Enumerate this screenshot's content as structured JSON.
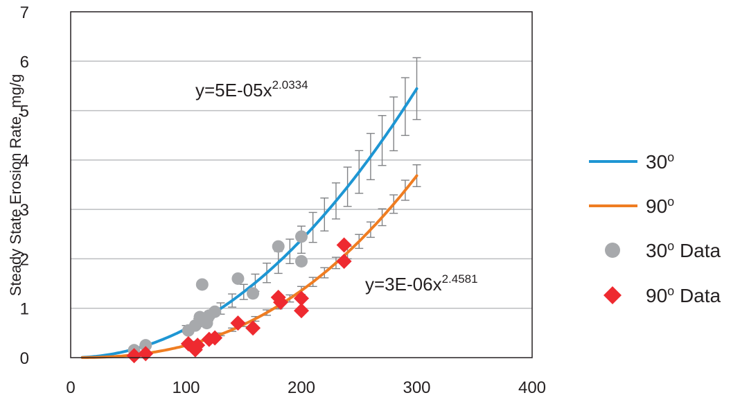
{
  "chart_data": {
    "type": "scatter",
    "title": "",
    "xlabel": "",
    "ylabel": "Steady State Erosion Rate, mg/g",
    "xlim": [
      0,
      400
    ],
    "ylim": [
      0,
      7
    ],
    "x_ticks": [
      "0",
      "100",
      "200",
      "300",
      "400"
    ],
    "y_ticks": [
      "0",
      "1",
      "2",
      "3",
      "4",
      "5",
      "6",
      "7"
    ],
    "grid": "horizontal",
    "legend_position": "right",
    "colors": {
      "fit_30": "#1e96d3",
      "fit_90": "#ef7d22",
      "data_30": "#a7a9ac",
      "data_90": "#ee2a30",
      "error_bars": "#808285",
      "grid": "#bcbec0",
      "axis": "#231f20"
    },
    "fits": [
      {
        "legend_label": "30",
        "legend_sup": "o",
        "color": "#1e96d3",
        "coefficient": 5e-05,
        "exponent": 2.0334,
        "x_range": [
          10,
          300
        ],
        "equation_base": "y=5E-05x",
        "equation_exp": "2.0334",
        "error_fraction": 0.115
      },
      {
        "legend_label": "90",
        "legend_sup": "o",
        "color": "#ef7d22",
        "coefficient": 3e-06,
        "exponent": 2.4581,
        "x_range": [
          10,
          300
        ],
        "equation_base": "y=3E-06x",
        "equation_exp": "2.4581",
        "error_fraction": 0.06
      }
    ],
    "error_bar_x": [
      100,
      110,
      120,
      130,
      140,
      150,
      160,
      170,
      180,
      190,
      200,
      210,
      220,
      230,
      240,
      250,
      260,
      270,
      280,
      290,
      300
    ],
    "series": [
      {
        "name": "30",
        "name_sup": "o",
        "name_suffix": " Data",
        "marker": "circle",
        "color": "#a7a9ac",
        "points": [
          [
            55,
            0.15
          ],
          [
            65,
            0.25
          ],
          [
            102,
            0.55
          ],
          [
            108,
            0.65
          ],
          [
            112,
            0.82
          ],
          [
            114,
            1.48
          ],
          [
            118,
            0.7
          ],
          [
            120,
            0.85
          ],
          [
            125,
            0.93
          ],
          [
            145,
            1.6
          ],
          [
            158,
            1.3
          ],
          [
            180,
            2.25
          ],
          [
            200,
            2.45
          ],
          [
            200,
            1.95
          ]
        ]
      },
      {
        "name": "90",
        "name_sup": "o",
        "name_suffix": " Data",
        "marker": "diamond",
        "color": "#ee2a30",
        "points": [
          [
            55,
            0.04
          ],
          [
            65,
            0.08
          ],
          [
            102,
            0.28
          ],
          [
            108,
            0.16
          ],
          [
            110,
            0.25
          ],
          [
            120,
            0.37
          ],
          [
            125,
            0.4
          ],
          [
            145,
            0.7
          ],
          [
            158,
            0.6
          ],
          [
            180,
            1.22
          ],
          [
            182,
            1.12
          ],
          [
            200,
            1.2
          ],
          [
            200,
            0.95
          ],
          [
            237,
            2.28
          ],
          [
            237,
            1.95
          ]
        ]
      }
    ]
  }
}
